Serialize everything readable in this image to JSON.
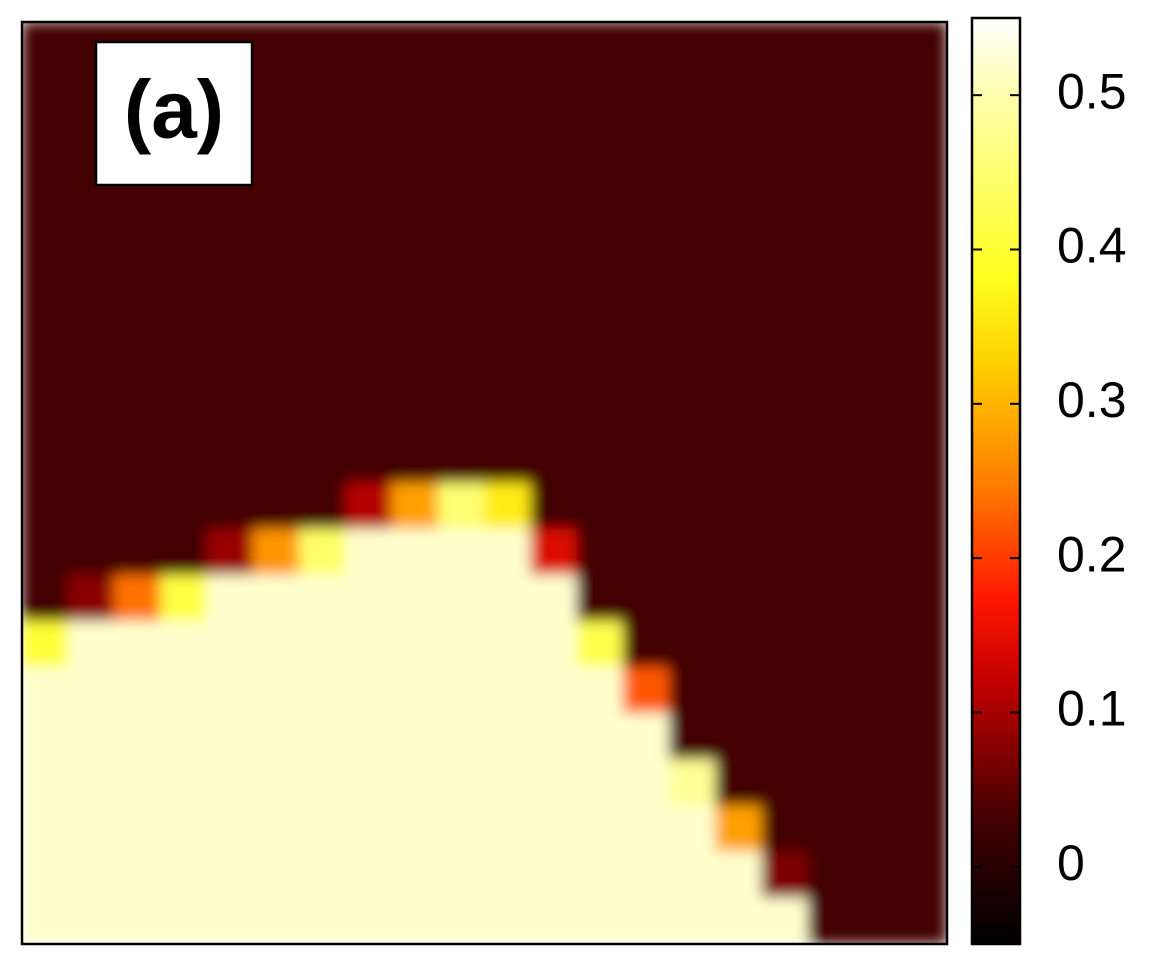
{
  "chart_data": {
    "type": "heatmap",
    "panel_label": "(a)",
    "values": [
      [
        0.03,
        0.03,
        0.03,
        0.03,
        0.03,
        0.03,
        0.03,
        0.03,
        0.03,
        0.03,
        0.03,
        0.03,
        0.03,
        0.03,
        0.03,
        0.03,
        0.03,
        0.03,
        0.03,
        0.03
      ],
      [
        0.03,
        0.03,
        0.03,
        0.03,
        0.03,
        0.03,
        0.03,
        0.03,
        0.03,
        0.03,
        0.03,
        0.03,
        0.03,
        0.03,
        0.03,
        0.03,
        0.03,
        0.03,
        0.03,
        0.03
      ],
      [
        0.03,
        0.03,
        0.03,
        0.03,
        0.03,
        0.03,
        0.03,
        0.03,
        0.03,
        0.03,
        0.03,
        0.03,
        0.03,
        0.03,
        0.03,
        0.03,
        0.03,
        0.03,
        0.03,
        0.03
      ],
      [
        0.03,
        0.03,
        0.03,
        0.03,
        0.03,
        0.03,
        0.03,
        0.03,
        0.03,
        0.03,
        0.03,
        0.03,
        0.03,
        0.03,
        0.03,
        0.03,
        0.03,
        0.03,
        0.03,
        0.03
      ],
      [
        0.03,
        0.03,
        0.03,
        0.03,
        0.03,
        0.03,
        0.03,
        0.03,
        0.03,
        0.03,
        0.03,
        0.03,
        0.03,
        0.03,
        0.03,
        0.03,
        0.03,
        0.03,
        0.03,
        0.03
      ],
      [
        0.03,
        0.03,
        0.03,
        0.03,
        0.03,
        0.03,
        0.03,
        0.03,
        0.03,
        0.03,
        0.03,
        0.03,
        0.03,
        0.03,
        0.03,
        0.03,
        0.03,
        0.03,
        0.03,
        0.03
      ],
      [
        0.03,
        0.03,
        0.03,
        0.03,
        0.03,
        0.03,
        0.03,
        0.03,
        0.03,
        0.03,
        0.03,
        0.03,
        0.03,
        0.03,
        0.03,
        0.03,
        0.03,
        0.03,
        0.03,
        0.03
      ],
      [
        0.03,
        0.03,
        0.03,
        0.03,
        0.03,
        0.03,
        0.03,
        0.03,
        0.03,
        0.03,
        0.03,
        0.03,
        0.03,
        0.03,
        0.03,
        0.03,
        0.03,
        0.03,
        0.03,
        0.03
      ],
      [
        0.03,
        0.03,
        0.03,
        0.03,
        0.03,
        0.03,
        0.03,
        0.03,
        0.03,
        0.03,
        0.03,
        0.03,
        0.03,
        0.03,
        0.03,
        0.03,
        0.03,
        0.03,
        0.03,
        0.03
      ],
      [
        0.03,
        0.03,
        0.03,
        0.03,
        0.03,
        0.03,
        0.03,
        0.03,
        0.03,
        0.03,
        0.03,
        0.03,
        0.03,
        0.03,
        0.03,
        0.03,
        0.03,
        0.03,
        0.03,
        0.03
      ],
      [
        0.03,
        0.03,
        0.03,
        0.03,
        0.03,
        0.03,
        0.03,
        0.11,
        0.28,
        0.45,
        0.36,
        0.03,
        0.03,
        0.03,
        0.03,
        0.03,
        0.03,
        0.03,
        0.03,
        0.03
      ],
      [
        0.03,
        0.03,
        0.03,
        0.03,
        0.09,
        0.27,
        0.44,
        0.52,
        0.52,
        0.52,
        0.52,
        0.14,
        0.03,
        0.03,
        0.03,
        0.03,
        0.03,
        0.03,
        0.03,
        0.03
      ],
      [
        0.03,
        0.08,
        0.24,
        0.41,
        0.52,
        0.52,
        0.52,
        0.52,
        0.52,
        0.52,
        0.52,
        0.52,
        0.03,
        0.03,
        0.03,
        0.03,
        0.03,
        0.03,
        0.03,
        0.03
      ],
      [
        0.4,
        0.52,
        0.52,
        0.52,
        0.52,
        0.52,
        0.52,
        0.52,
        0.52,
        0.52,
        0.52,
        0.52,
        0.42,
        0.03,
        0.03,
        0.03,
        0.03,
        0.03,
        0.03,
        0.03
      ],
      [
        0.52,
        0.52,
        0.52,
        0.52,
        0.52,
        0.52,
        0.52,
        0.52,
        0.52,
        0.52,
        0.52,
        0.52,
        0.52,
        0.22,
        0.03,
        0.03,
        0.03,
        0.03,
        0.03,
        0.03
      ],
      [
        0.52,
        0.52,
        0.52,
        0.52,
        0.52,
        0.52,
        0.52,
        0.52,
        0.52,
        0.52,
        0.52,
        0.52,
        0.52,
        0.52,
        0.03,
        0.03,
        0.03,
        0.03,
        0.03,
        0.03
      ],
      [
        0.52,
        0.52,
        0.52,
        0.52,
        0.52,
        0.52,
        0.52,
        0.52,
        0.52,
        0.52,
        0.52,
        0.52,
        0.52,
        0.52,
        0.48,
        0.03,
        0.03,
        0.03,
        0.03,
        0.03
      ],
      [
        0.52,
        0.52,
        0.52,
        0.52,
        0.52,
        0.52,
        0.52,
        0.52,
        0.52,
        0.52,
        0.52,
        0.52,
        0.52,
        0.52,
        0.52,
        0.28,
        0.03,
        0.03,
        0.03,
        0.03
      ],
      [
        0.52,
        0.52,
        0.52,
        0.52,
        0.52,
        0.52,
        0.52,
        0.52,
        0.52,
        0.52,
        0.52,
        0.52,
        0.52,
        0.52,
        0.52,
        0.52,
        0.07,
        0.03,
        0.03,
        0.03
      ],
      [
        0.52,
        0.52,
        0.52,
        0.52,
        0.52,
        0.52,
        0.52,
        0.52,
        0.52,
        0.52,
        0.52,
        0.52,
        0.52,
        0.52,
        0.52,
        0.52,
        0.52,
        0.03,
        0.03,
        0.03
      ]
    ],
    "zlim": [
      -0.05,
      0.55
    ],
    "zticks": [
      0,
      0.1,
      0.2,
      0.3,
      0.4,
      0.5
    ]
  }
}
